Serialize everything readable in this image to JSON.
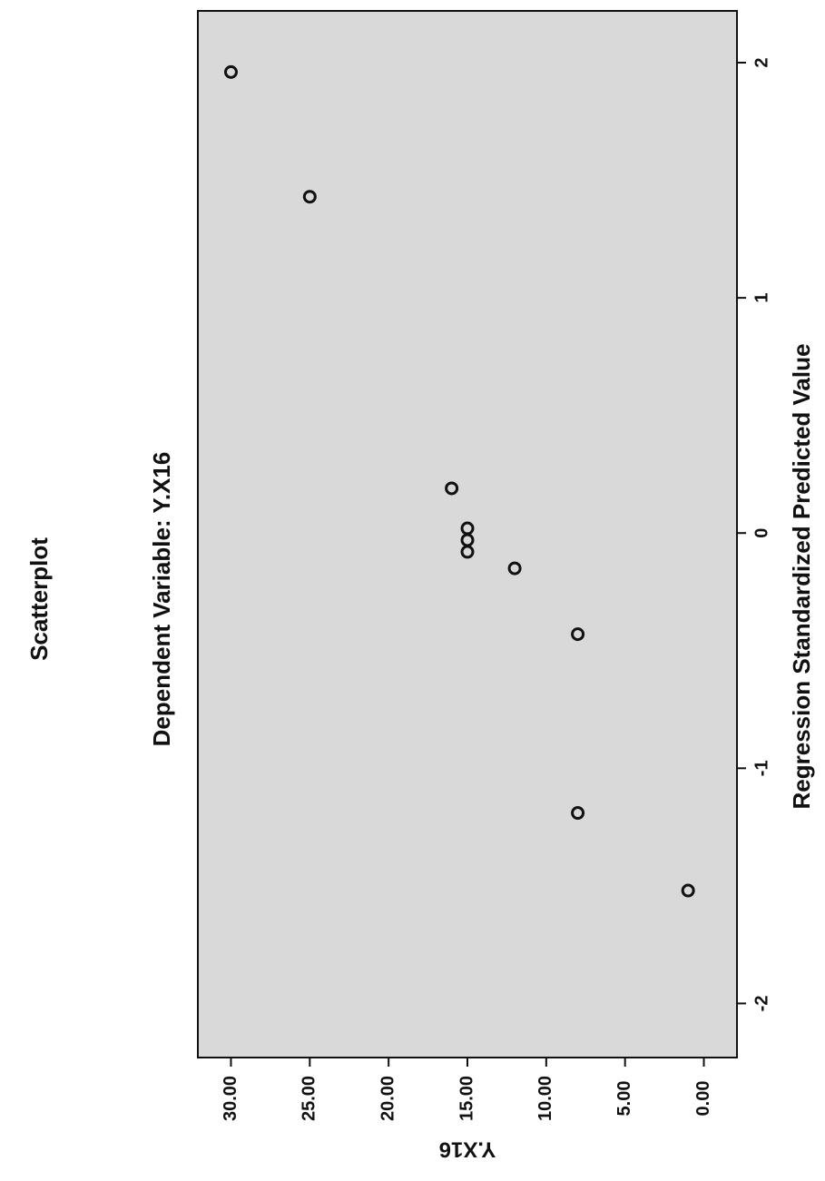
{
  "chart_data": {
    "type": "scatter",
    "title": "Scatterplot",
    "subtitle": "Dependent Variable: Y.X16",
    "x_label": "Regression Standardized Predicted Value",
    "y_label": "Y.X16",
    "x": [
      1.96,
      1.43,
      0.19,
      0.02,
      -0.03,
      -0.08,
      -0.15,
      -0.43,
      -1.19,
      -1.52
    ],
    "values": [
      30,
      25,
      16,
      15,
      15,
      15,
      12,
      8,
      8,
      1
    ],
    "color": "#111111",
    "xlim": [
      -2.23,
      2.22
    ],
    "ylim": [
      -2.1,
      32.1
    ],
    "xticks": [
      -2,
      -1,
      0,
      1,
      2
    ],
    "yticks": [
      {
        "value": 0,
        "label": "0.00"
      },
      {
        "value": 5,
        "label": "5.00"
      },
      {
        "value": 10,
        "label": "10.00"
      },
      {
        "value": 15,
        "label": "15.00"
      },
      {
        "value": 20,
        "label": "20.00"
      },
      {
        "value": 25,
        "label": "25.00"
      },
      {
        "value": 30,
        "label": "30.00"
      }
    ]
  }
}
